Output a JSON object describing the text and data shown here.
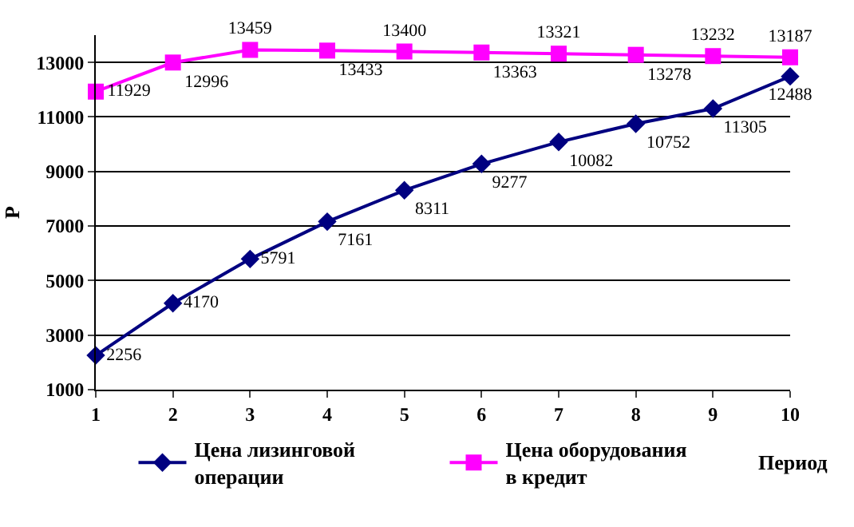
{
  "chart_data": {
    "type": "line",
    "ylabel": "Р",
    "xlabel": "Период",
    "x": [
      1,
      2,
      3,
      4,
      5,
      6,
      7,
      8,
      9,
      10
    ],
    "series": [
      {
        "name": "Цена лизинговой операции",
        "color": "#000080",
        "marker": "diamond",
        "values": [
          2256,
          4170,
          5791,
          7161,
          8311,
          9277,
          10082,
          10752,
          11305,
          12488
        ]
      },
      {
        "name": "Цена оборудования в кредит",
        "color": "#ff00ff",
        "marker": "square",
        "values": [
          11929,
          12996,
          13459,
          13433,
          13400,
          13363,
          13321,
          13278,
          13232,
          13187
        ]
      }
    ],
    "xlim": [
      1,
      10
    ],
    "xticks": [
      1,
      2,
      3,
      4,
      5,
      6,
      7,
      8,
      9,
      10
    ],
    "ylim": [
      1000,
      14000
    ],
    "yticks": [
      1000,
      3000,
      5000,
      7000,
      9000,
      11000,
      13000
    ],
    "grid": "y",
    "legend": "bottom",
    "data_labels": true
  }
}
